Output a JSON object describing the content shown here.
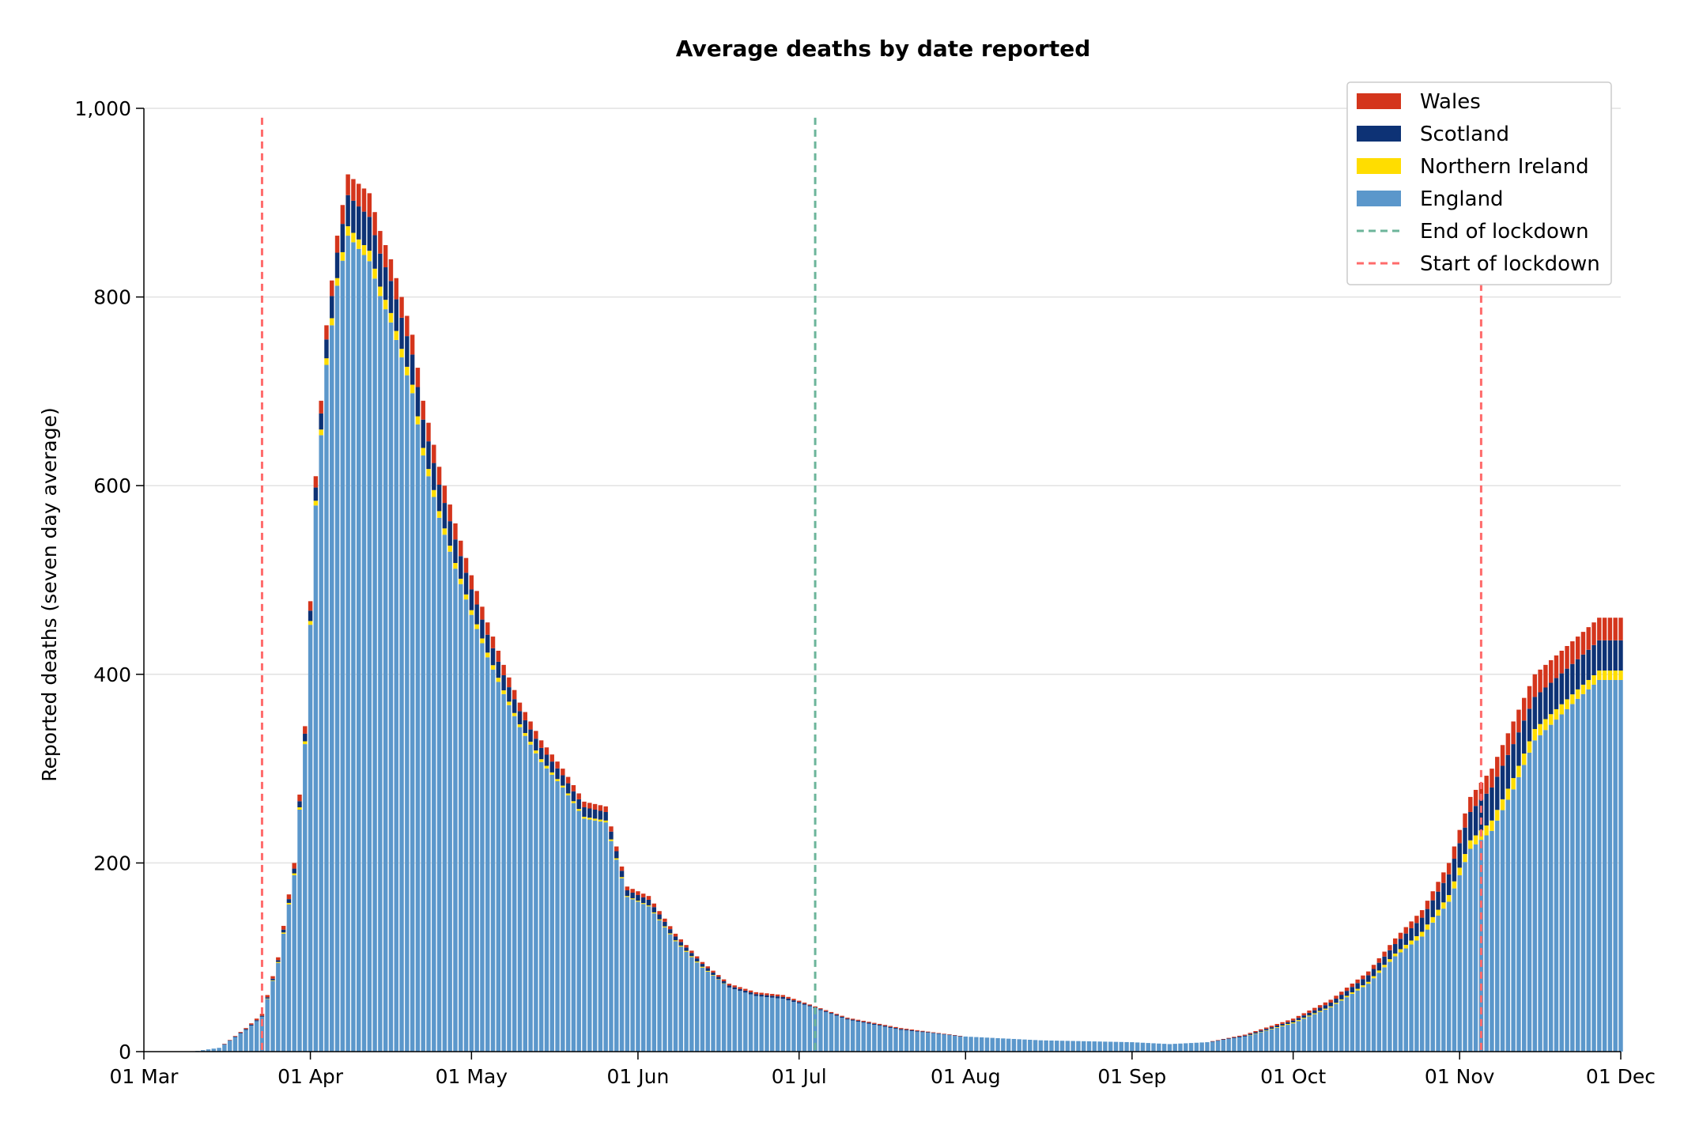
{
  "chart_data": {
    "type": "bar",
    "stacked": true,
    "title": "Average deaths by date reported",
    "xlabel": "",
    "ylabel": "Reported deaths (seven day average)",
    "ylim": [
      0,
      1000
    ],
    "yticks": [
      0,
      200,
      400,
      600,
      800,
      1000
    ],
    "ytick_labels": [
      "0",
      "200",
      "400",
      "600",
      "800",
      "1,000"
    ],
    "x_start": "2020-03-01",
    "x_end": "2020-12-01",
    "xticks": [
      "2020-03-01",
      "2020-04-01",
      "2020-05-01",
      "2020-06-01",
      "2020-07-01",
      "2020-08-01",
      "2020-09-01",
      "2020-10-01",
      "2020-11-01",
      "2020-12-01"
    ],
    "xtick_labels": [
      "01 Mar",
      "01 Apr",
      "01 May",
      "01 Jun",
      "01 Jul",
      "01 Aug",
      "01 Sep",
      "01 Oct",
      "01 Nov",
      "01 Dec"
    ],
    "grid": "horizontal",
    "legend_position": "top-right",
    "colors": {
      "England": "#5b97cb",
      "Northern Ireland": "#ffdd00",
      "Scotland": "#0d3275",
      "Wales": "#d4351c",
      "End of lockdown": "#6cb59a",
      "Start of lockdown": "#ff6b6b",
      "grid": "#e2e2e2"
    },
    "legend": [
      "Wales",
      "Scotland",
      "Northern Ireland",
      "England",
      "End of lockdown",
      "Start of lockdown"
    ],
    "stack_order": [
      "England",
      "Northern Ireland",
      "Scotland",
      "Wales"
    ],
    "vlines": [
      {
        "name": "Start of lockdown",
        "date": "2020-03-23"
      },
      {
        "name": "End of lockdown",
        "date": "2020-07-04"
      },
      {
        "name": "Start of lockdown",
        "date": "2020-11-05"
      }
    ],
    "anchors_date": [
      "2020-03-10",
      "2020-03-15",
      "2020-03-20",
      "2020-03-23",
      "2020-03-26",
      "2020-03-29",
      "2020-03-31",
      "2020-04-02",
      "2020-04-04",
      "2020-04-06",
      "2020-04-08",
      "2020-04-10",
      "2020-04-12",
      "2020-04-14",
      "2020-04-16",
      "2020-04-18",
      "2020-04-20",
      "2020-04-22",
      "2020-04-25",
      "2020-04-28",
      "2020-05-01",
      "2020-05-04",
      "2020-05-07",
      "2020-05-10",
      "2020-05-14",
      "2020-05-18",
      "2020-05-22",
      "2020-05-26",
      "2020-05-30",
      "2020-06-03",
      "2020-06-08",
      "2020-06-13",
      "2020-06-18",
      "2020-06-23",
      "2020-06-28",
      "2020-07-03",
      "2020-07-10",
      "2020-07-20",
      "2020-08-01",
      "2020-08-15",
      "2020-09-01",
      "2020-09-08",
      "2020-09-15",
      "2020-09-22",
      "2020-10-01",
      "2020-10-08",
      "2020-10-15",
      "2020-10-20",
      "2020-10-25",
      "2020-10-30",
      "2020-11-03",
      "2020-11-07",
      "2020-11-11",
      "2020-11-15",
      "2020-11-19",
      "2020-11-23",
      "2020-11-27",
      "2020-12-01"
    ],
    "anchors_total": [
      0,
      4,
      25,
      40,
      100,
      200,
      345,
      610,
      770,
      865,
      930,
      920,
      910,
      870,
      840,
      800,
      760,
      690,
      620,
      560,
      505,
      455,
      410,
      370,
      330,
      300,
      265,
      260,
      175,
      165,
      125,
      95,
      72,
      63,
      60,
      50,
      36,
      25,
      16,
      12,
      10,
      8,
      10,
      18,
      35,
      55,
      85,
      120,
      150,
      200,
      270,
      300,
      350,
      400,
      420,
      440,
      460,
      460
    ],
    "anchors_wales": [
      0,
      0,
      1,
      2,
      3,
      6,
      8,
      12,
      15,
      18,
      22,
      24,
      25,
      24,
      23,
      22,
      21,
      20,
      19,
      17,
      15,
      13,
      11,
      9,
      8,
      7,
      6,
      6,
      4,
      4,
      3,
      2,
      2,
      2,
      2,
      1,
      1,
      1,
      0,
      0,
      0,
      0,
      0,
      1,
      2,
      3,
      4,
      6,
      8,
      12,
      16,
      20,
      24,
      24,
      24,
      24,
      24,
      24
    ],
    "anchors_scotland": [
      0,
      0,
      1,
      1,
      2,
      5,
      8,
      14,
      20,
      27,
      33,
      35,
      36,
      35,
      34,
      33,
      32,
      30,
      28,
      25,
      22,
      19,
      16,
      14,
      12,
      11,
      10,
      9,
      6,
      6,
      4,
      3,
      2,
      2,
      2,
      1,
      1,
      1,
      0,
      0,
      0,
      0,
      0,
      1,
      2,
      4,
      7,
      10,
      15,
      22,
      30,
      35,
      36,
      34,
      33,
      32,
      32,
      32
    ],
    "anchors_ni": [
      0,
      0,
      0,
      0,
      1,
      2,
      3,
      5,
      7,
      8,
      10,
      10,
      11,
      10,
      10,
      9,
      9,
      8,
      7,
      6,
      5,
      5,
      4,
      3,
      3,
      2,
      2,
      2,
      1,
      1,
      1,
      1,
      0,
      0,
      0,
      0,
      0,
      0,
      0,
      0,
      0,
      0,
      0,
      0,
      1,
      1,
      2,
      3,
      5,
      7,
      9,
      11,
      12,
      12,
      11,
      10,
      10,
      10
    ]
  }
}
